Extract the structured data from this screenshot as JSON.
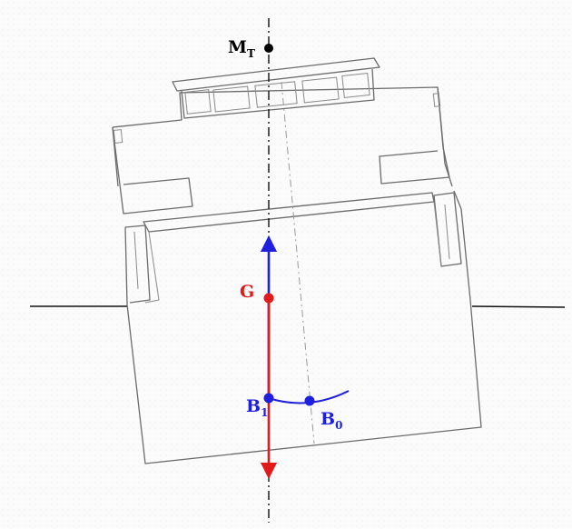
{
  "labels": {
    "metacenter": {
      "main": "M",
      "sub": "T"
    },
    "gravity": {
      "main": "G"
    },
    "buoyancy_heeled": {
      "main": "B",
      "sub": "1"
    },
    "buoyancy_upright": {
      "main": "B",
      "sub": "0"
    }
  },
  "colors": {
    "gravity": "#e11b1b",
    "buoyancy": "#1f1fe0",
    "metacenter": "#000000",
    "hull": "#6b6b6b"
  },
  "icons": {
    "gravity_force": "arrow-down-icon",
    "buoyancy_force": "arrow-up-icon"
  }
}
